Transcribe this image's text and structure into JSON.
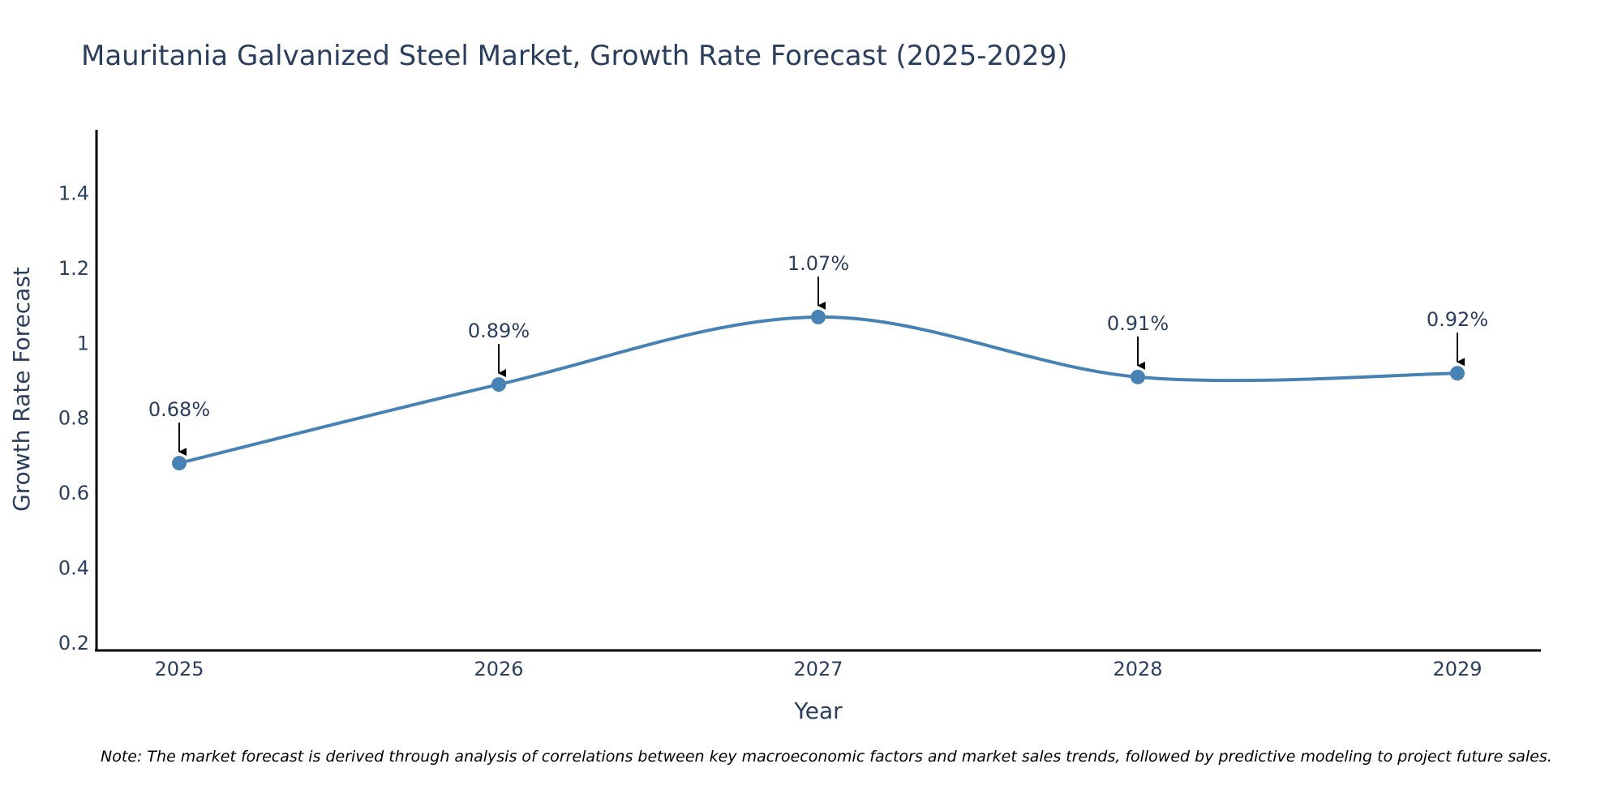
{
  "chart_data": {
    "type": "line",
    "title": "Mauritania Galvanized Steel Market, Growth Rate Forecast (2025-2029)",
    "xlabel": "Year",
    "ylabel": "Growth Rate Forecast",
    "categories": [
      "2025",
      "2026",
      "2027",
      "2028",
      "2029"
    ],
    "series": [
      {
        "name": "Growth Rate Forecast",
        "values": [
          0.68,
          0.89,
          1.07,
          0.91,
          0.92
        ]
      }
    ],
    "annotations": [
      "0.68%",
      "0.89%",
      "1.07%",
      "0.91%",
      "0.92%"
    ],
    "ylim": [
      0.18,
      1.57
    ],
    "yticks": [
      0.2,
      0.4,
      0.6,
      0.8,
      1,
      1.2,
      1.4
    ],
    "ytick_labels": [
      "0.2",
      "0.4",
      "0.6",
      "0.8",
      "1",
      "1.2",
      "1.4"
    ],
    "grid": false,
    "line_color": "#4682B4",
    "text_color": "#2a3f5f",
    "note": "Note: The market forecast is derived through analysis of correlations between key macroeconomic factors and market sales trends, followed by predictive modeling to project future sales."
  }
}
